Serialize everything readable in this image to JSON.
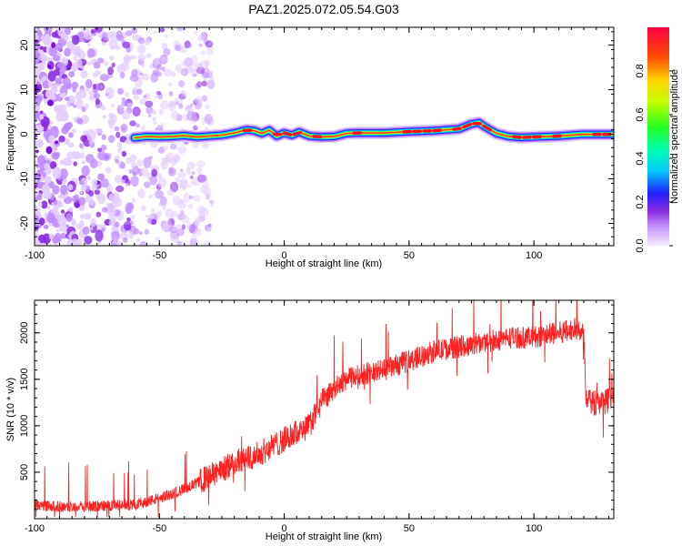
{
  "title": "PAZ1.2025.072.05.54.G03",
  "chart_data": [
    {
      "type": "heatmap",
      "xlabel": "Height of straight line (km)",
      "ylabel": "Frequency (Hz)",
      "xlim": [
        -100,
        132
      ],
      "ylim": [
        -25,
        24
      ],
      "xticks": [
        -100,
        -50,
        0,
        50,
        100
      ],
      "yticks": [
        -20,
        -10,
        0,
        10,
        20
      ],
      "colorbar": {
        "label": "Normalized spectral amplitude",
        "range": [
          0,
          1
        ],
        "ticks": [
          "0.0",
          "0.2",
          "0.4",
          "0.6",
          "0.8"
        ]
      },
      "ridge": {
        "x": [
          -60,
          -55,
          -50,
          -45,
          -40,
          -35,
          -30,
          -25,
          -20,
          -15,
          -12,
          -9,
          -6,
          -3,
          0,
          3,
          6,
          10,
          15,
          20,
          25,
          30,
          40,
          50,
          60,
          70,
          75,
          78,
          80,
          85,
          90,
          95,
          100,
          110,
          120,
          132
        ],
        "y": [
          -0.8,
          -0.5,
          -0.6,
          -0.5,
          -0.3,
          -0.6,
          -0.4,
          -0.2,
          0.3,
          1.0,
          0.8,
          0.2,
          0.9,
          -0.4,
          0.3,
          -0.2,
          0.5,
          -0.4,
          -0.6,
          -0.5,
          0.2,
          0.3,
          0.3,
          0.6,
          0.8,
          1.2,
          2.3,
          2.6,
          1.8,
          0.2,
          -0.5,
          -0.7,
          -0.6,
          -0.4,
          0.0,
          0.0
        ]
      },
      "noise_region_x": [
        -100,
        -38
      ]
    },
    {
      "type": "line",
      "xlabel": "Height of straight line (km)",
      "ylabel": "SNR (10 * v/v)",
      "xlim": [
        -100,
        132
      ],
      "ylim": [
        0,
        2350
      ],
      "xticks": [
        -100,
        -50,
        0,
        50,
        100
      ],
      "yticks": [
        500,
        1000,
        1500,
        2000
      ],
      "series": [
        {
          "color": "#ff2020",
          "x": [
            -100,
            -90,
            -80,
            -70,
            -60,
            -50,
            -40,
            -30,
            -20,
            -10,
            0,
            10,
            15,
            20,
            25,
            30,
            40,
            50,
            60,
            70,
            80,
            90,
            100,
            110,
            118,
            120,
            121,
            125,
            132
          ],
          "y": [
            150,
            130,
            130,
            140,
            150,
            220,
            320,
            450,
            600,
            700,
            850,
            1000,
            1250,
            1400,
            1500,
            1550,
            1600,
            1700,
            1800,
            1850,
            1900,
            1950,
            1950,
            2000,
            2050,
            2000,
            1250,
            1250,
            1280
          ]
        }
      ]
    }
  ]
}
